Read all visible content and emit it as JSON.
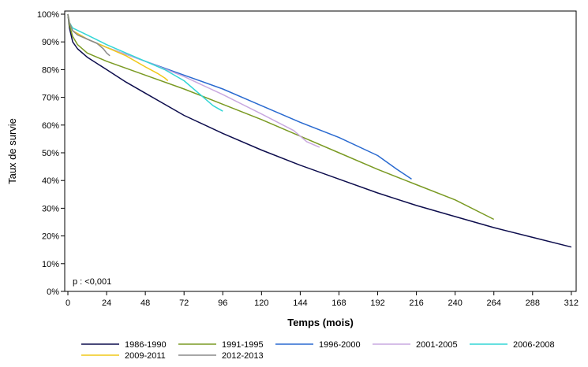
{
  "chart_data": {
    "type": "line",
    "title": "",
    "xlabel": "Temps (mois)",
    "ylabel": "Taux de survie",
    "xlim": [
      0,
      315
    ],
    "ylim": [
      0,
      100
    ],
    "x_ticks": [
      0,
      24,
      48,
      72,
      96,
      120,
      144,
      168,
      192,
      216,
      240,
      264,
      288,
      312
    ],
    "y_ticks": [
      0,
      10,
      20,
      30,
      40,
      50,
      60,
      70,
      80,
      90,
      100
    ],
    "y_tick_labels": [
      "0%",
      "10%",
      "20%",
      "30%",
      "40%",
      "50%",
      "60%",
      "70%",
      "80%",
      "90%",
      "100%"
    ],
    "annotation": "p : <0,001",
    "grid": false,
    "legend_position": "bottom",
    "series": [
      {
        "name": "1986-1990",
        "color": "#0d0d4d",
        "points": [
          [
            0,
            100
          ],
          [
            1,
            95
          ],
          [
            3,
            90
          ],
          [
            6,
            87.5
          ],
          [
            12,
            84.5
          ],
          [
            24,
            80
          ],
          [
            36,
            75.5
          ],
          [
            48,
            71.5
          ],
          [
            72,
            63.5
          ],
          [
            96,
            57
          ],
          [
            120,
            51
          ],
          [
            144,
            45.5
          ],
          [
            168,
            40.5
          ],
          [
            192,
            35.5
          ],
          [
            216,
            31
          ],
          [
            240,
            27
          ],
          [
            264,
            23
          ],
          [
            288,
            19.5
          ],
          [
            312,
            16
          ]
        ]
      },
      {
        "name": "1991-1995",
        "color": "#7a9a23",
        "points": [
          [
            0,
            100
          ],
          [
            1,
            96
          ],
          [
            3,
            92
          ],
          [
            6,
            89
          ],
          [
            12,
            86
          ],
          [
            24,
            83
          ],
          [
            48,
            78
          ],
          [
            72,
            73
          ],
          [
            96,
            67.5
          ],
          [
            120,
            62
          ],
          [
            144,
            56
          ],
          [
            168,
            50
          ],
          [
            192,
            44
          ],
          [
            216,
            38.5
          ],
          [
            240,
            33
          ],
          [
            264,
            26
          ]
        ]
      },
      {
        "name": "1996-2000",
        "color": "#2a6ad0",
        "points": [
          [
            0,
            100
          ],
          [
            1,
            97
          ],
          [
            3,
            94
          ],
          [
            12,
            91
          ],
          [
            24,
            88
          ],
          [
            48,
            83
          ],
          [
            72,
            78
          ],
          [
            96,
            73
          ],
          [
            120,
            67
          ],
          [
            144,
            61
          ],
          [
            168,
            55.5
          ],
          [
            192,
            49
          ],
          [
            204,
            44
          ],
          [
            213,
            40.5
          ]
        ]
      },
      {
        "name": "2001-2005",
        "color": "#c9a9e0",
        "points": [
          [
            0,
            100
          ],
          [
            1,
            97
          ],
          [
            3,
            94
          ],
          [
            12,
            91
          ],
          [
            24,
            88
          ],
          [
            48,
            83
          ],
          [
            72,
            77.5
          ],
          [
            96,
            71
          ],
          [
            120,
            64
          ],
          [
            140,
            58
          ],
          [
            148,
            54
          ],
          [
            156,
            52
          ]
        ]
      },
      {
        "name": "2006-2008",
        "color": "#33d6d6",
        "points": [
          [
            0,
            100
          ],
          [
            1,
            97
          ],
          [
            3,
            95
          ],
          [
            12,
            92.5
          ],
          [
            24,
            89
          ],
          [
            36,
            86
          ],
          [
            48,
            83
          ],
          [
            60,
            80
          ],
          [
            72,
            76
          ],
          [
            84,
            70
          ],
          [
            90,
            67
          ],
          [
            96,
            65
          ]
        ]
      },
      {
        "name": "2009-2011",
        "color": "#f0c818",
        "points": [
          [
            0,
            100
          ],
          [
            1,
            97
          ],
          [
            3,
            94
          ],
          [
            12,
            91
          ],
          [
            24,
            88
          ],
          [
            36,
            85
          ],
          [
            48,
            81
          ],
          [
            56,
            78.5
          ],
          [
            60,
            77
          ],
          [
            62,
            76
          ]
        ]
      },
      {
        "name": "2012-2013",
        "color": "#8a8a8a",
        "points": [
          [
            0,
            100
          ],
          [
            1,
            97
          ],
          [
            3,
            94
          ],
          [
            6,
            92.5
          ],
          [
            12,
            91
          ],
          [
            18,
            89.5
          ],
          [
            22,
            87.5
          ],
          [
            24,
            86
          ],
          [
            26,
            85
          ]
        ]
      }
    ]
  }
}
